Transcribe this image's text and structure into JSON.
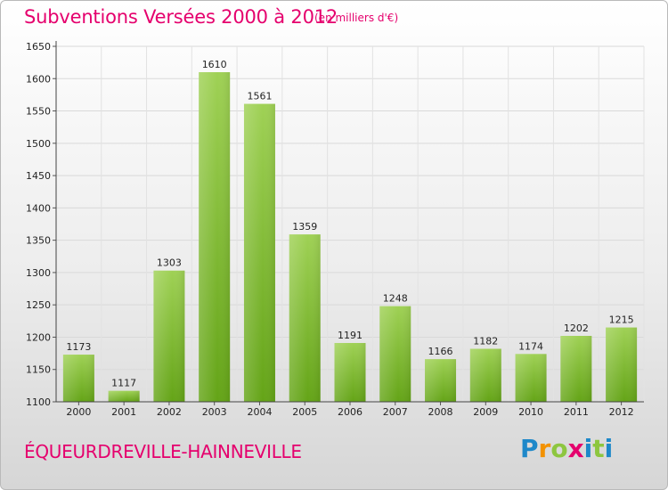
{
  "header": {
    "title": "Subventions Versées 2000 à 2012",
    "subtitle": "(en milliers d'€)"
  },
  "footer": {
    "commune": "ÉQUEURDREVILLE-HAINNEVILLE",
    "logo_letters": [
      "P",
      "r",
      "o",
      "x",
      "i",
      "t",
      "i"
    ]
  },
  "colors": {
    "title": "#e5006d",
    "bar_top": "#9fd155",
    "bar_bottom": "#64a417",
    "logo": [
      "#1e88c9",
      "#f39200",
      "#8dc63f",
      "#e5006d",
      "#1e88c9",
      "#8dc63f",
      "#1e88c9"
    ]
  },
  "chart_data": {
    "type": "bar",
    "categories": [
      "2000",
      "2001",
      "2002",
      "2003",
      "2004",
      "2005",
      "2006",
      "2007",
      "2008",
      "2009",
      "2010",
      "2011",
      "2012"
    ],
    "values": [
      1173,
      1117,
      1303,
      1610,
      1561,
      1359,
      1191,
      1248,
      1166,
      1182,
      1174,
      1202,
      1215
    ],
    "ylim": [
      1100,
      1650
    ],
    "yticks": [
      1100,
      1150,
      1200,
      1250,
      1300,
      1350,
      1400,
      1450,
      1500,
      1550,
      1600,
      1650
    ],
    "grid": true,
    "data_labels": true
  }
}
